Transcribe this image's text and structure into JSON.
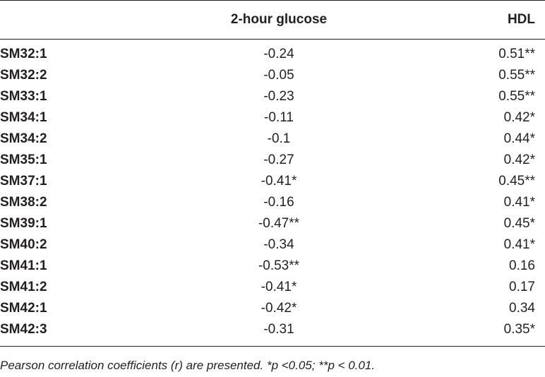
{
  "table": {
    "headers": [
      "",
      "2-hour glucose",
      "HDL"
    ],
    "rows": [
      {
        "label": "SM32:1",
        "glucose": "-0.24",
        "hdl": "0.51**"
      },
      {
        "label": "SM32:2",
        "glucose": "-0.05",
        "hdl": "0.55**"
      },
      {
        "label": "SM33:1",
        "glucose": "-0.23",
        "hdl": "0.55**"
      },
      {
        "label": "SM34:1",
        "glucose": "-0.11",
        "hdl": "0.42*"
      },
      {
        "label": "SM34:2",
        "glucose": "-0.1",
        "hdl": "0.44*"
      },
      {
        "label": "SM35:1",
        "glucose": "-0.27",
        "hdl": "0.42*"
      },
      {
        "label": "SM37:1",
        "glucose": "-0.41*",
        "hdl": "0.45**"
      },
      {
        "label": "SM38:2",
        "glucose": "-0.16",
        "hdl": "0.41*"
      },
      {
        "label": "SM39:1",
        "glucose": "-0.47**",
        "hdl": "0.45*"
      },
      {
        "label": "SM40:2",
        "glucose": "-0.34",
        "hdl": "0.41*"
      },
      {
        "label": "SM41:1",
        "glucose": "-0.53**",
        "hdl": "0.16"
      },
      {
        "label": "SM41:2",
        "glucose": "-0.41*",
        "hdl": "0.17"
      },
      {
        "label": "SM42:1",
        "glucose": "-0.42*",
        "hdl": "0.34"
      },
      {
        "label": "SM42:3",
        "glucose": "-0.31",
        "hdl": "0.35*"
      }
    ]
  },
  "footnote": "Pearson correlation coefficients (r) are presented. *p <0.05; **p < 0.01."
}
